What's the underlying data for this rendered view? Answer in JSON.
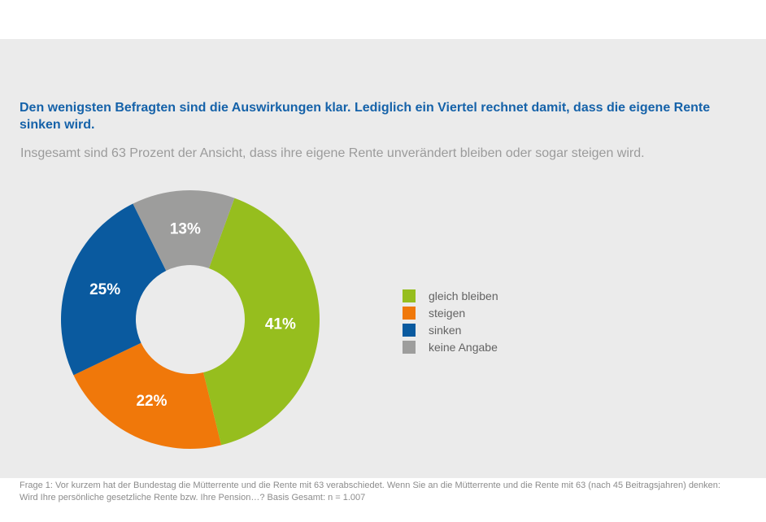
{
  "page": {
    "background": "#FFFFFF",
    "panel_background": "#EBEBEB"
  },
  "header": {
    "title": "Den wenigsten Befragten sind die Auswirkungen klar. Lediglich ein Viertel rechnet damit, dass die eigene Rente sinken wird.",
    "title_color": "#1562A9",
    "subtitle": "Insgesamt sind 63 Prozent der Ansicht, dass ihre eigene Rente unverändert bleiben oder sogar steigen wird.",
    "subtitle_color": "#9B9B9B"
  },
  "chart_data": {
    "type": "pie",
    "subtype": "donut",
    "direction": "clockwise",
    "start_angle_deg": 20,
    "categories": [
      "gleich bleiben",
      "steigen",
      "sinken",
      "keine Angabe"
    ],
    "values": [
      41,
      22,
      25,
      13
    ],
    "unit": "percent",
    "data_labels": [
      "41%",
      "22%",
      "25%",
      "13%"
    ],
    "colors": [
      "#96BE1E",
      "#F0780A",
      "#0A5A9F",
      "#9D9D9C"
    ],
    "data_label_color": "#FFFFFF",
    "legend_position": "right",
    "legend_text_color": "#636363",
    "grid": false
  },
  "footnote": {
    "line1": "Frage 1: Vor kurzem hat der Bundestag die Mütterrente und die Rente mit 63 verabschiedet. Wenn Sie an die Mütterrente und die Rente mit 63 (nach 45 Beitragsjahren) denken:",
    "line2": "Wird Ihre persönliche gesetzliche Rente bzw. Ihre Pension…? Basis Gesamt: n = 1.007",
    "color": "#8C8C8C"
  }
}
